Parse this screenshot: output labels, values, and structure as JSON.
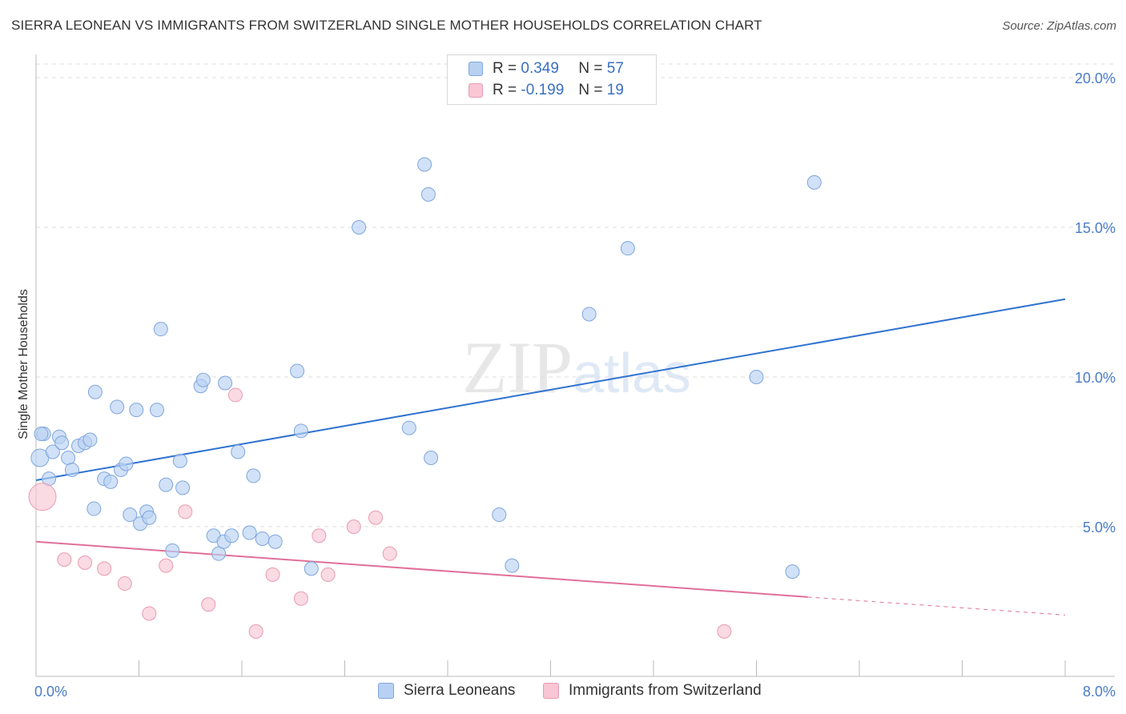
{
  "title": "SIERRA LEONEAN VS IMMIGRANTS FROM SWITZERLAND SINGLE MOTHER HOUSEHOLDS CORRELATION CHART",
  "source": "Source: ZipAtlas.com",
  "watermark": "ZIPatlas",
  "legend": {
    "rows": [
      {
        "r_label": "R =",
        "r_value": "0.349",
        "n_label": "N =",
        "n_value": "57"
      },
      {
        "r_label": "R =",
        "r_value": "-0.199",
        "n_label": "N =",
        "n_value": "19"
      }
    ]
  },
  "bottom_legend": [
    "Sierra Leoneans",
    "Immigrants from Switzerland"
  ],
  "colors": {
    "blue_fill": "#b8d1f2",
    "blue_stroke": "#7fa6dc",
    "blue_line": "#2f72d0",
    "pink_fill": "#f8c6d4",
    "pink_stroke": "#e89bb3",
    "pink_line": "#e0709a",
    "tick_text": "#4a7cc9",
    "grid": "#dcdcdc"
  },
  "chart_data": {
    "type": "scatter",
    "title": "SIERRA LEONEAN VS IMMIGRANTS FROM SWITZERLAND SINGLE MOTHER HOUSEHOLDS CORRELATION CHART",
    "xlabel": "",
    "ylabel": "Single Mother Households",
    "xlim": [
      0,
      8
    ],
    "ylim": [
      0,
      20
    ],
    "x_tick_labels": [
      "0.0%",
      "8.0%"
    ],
    "y_ticks": [
      5,
      10,
      15,
      20
    ],
    "y_tick_labels": [
      "5.0%",
      "10.0%",
      "15.0%",
      "20.0%"
    ],
    "grid": true,
    "legend_position": "top-center",
    "series": [
      {
        "name": "Sierra Leoneans",
        "color": "#b8d1f2",
        "points": [
          [
            0.03,
            7.3
          ],
          [
            0.06,
            8.1
          ],
          [
            0.1,
            6.6
          ],
          [
            0.13,
            7.5
          ],
          [
            0.18,
            8.0
          ],
          [
            0.2,
            7.8
          ],
          [
            0.25,
            7.3
          ],
          [
            0.28,
            6.9
          ],
          [
            0.33,
            7.7
          ],
          [
            0.38,
            7.8
          ],
          [
            0.42,
            7.9
          ],
          [
            0.46,
            9.5
          ],
          [
            0.53,
            6.6
          ],
          [
            0.58,
            6.5
          ],
          [
            0.63,
            9.0
          ],
          [
            0.66,
            6.9
          ],
          [
            0.7,
            7.1
          ],
          [
            0.73,
            5.4
          ],
          [
            0.78,
            8.9
          ],
          [
            0.81,
            5.1
          ],
          [
            0.86,
            5.5
          ],
          [
            0.88,
            5.3
          ],
          [
            0.94,
            8.9
          ],
          [
            0.97,
            11.6
          ],
          [
            1.01,
            6.4
          ],
          [
            1.06,
            4.2
          ],
          [
            1.12,
            7.2
          ],
          [
            1.14,
            6.3
          ],
          [
            1.28,
            9.7
          ],
          [
            1.3,
            9.9
          ],
          [
            1.38,
            4.7
          ],
          [
            1.42,
            4.1
          ],
          [
            1.46,
            4.5
          ],
          [
            1.47,
            9.8
          ],
          [
            1.52,
            4.7
          ],
          [
            1.57,
            7.5
          ],
          [
            1.66,
            4.8
          ],
          [
            1.69,
            6.7
          ],
          [
            1.76,
            4.6
          ],
          [
            1.86,
            4.5
          ],
          [
            2.03,
            10.2
          ],
          [
            2.06,
            8.2
          ],
          [
            2.14,
            3.6
          ],
          [
            2.51,
            15.0
          ],
          [
            2.9,
            8.3
          ],
          [
            3.02,
            17.1
          ],
          [
            3.05,
            16.1
          ],
          [
            3.07,
            7.3
          ],
          [
            3.6,
            5.4
          ],
          [
            3.7,
            3.7
          ],
          [
            4.3,
            12.1
          ],
          [
            4.6,
            14.3
          ],
          [
            5.6,
            10.0
          ],
          [
            5.88,
            3.5
          ],
          [
            6.05,
            16.5
          ],
          [
            0.45,
            5.6
          ],
          [
            0.04,
            8.1
          ]
        ]
      },
      {
        "name": "Immigrants from Switzerland",
        "color": "#f8c6d4",
        "points": [
          [
            0.05,
            6.0
          ],
          [
            0.22,
            3.9
          ],
          [
            0.38,
            3.8
          ],
          [
            0.53,
            3.6
          ],
          [
            0.69,
            3.1
          ],
          [
            0.88,
            2.1
          ],
          [
            1.01,
            3.7
          ],
          [
            1.16,
            5.5
          ],
          [
            1.34,
            2.4
          ],
          [
            1.55,
            9.4
          ],
          [
            1.71,
            1.5
          ],
          [
            1.84,
            3.4
          ],
          [
            2.06,
            2.6
          ],
          [
            2.2,
            4.7
          ],
          [
            2.27,
            3.4
          ],
          [
            2.47,
            5.0
          ],
          [
            2.64,
            5.3
          ],
          [
            2.75,
            4.1
          ],
          [
            5.35,
            1.5
          ]
        ]
      }
    ],
    "trendlines": [
      {
        "series": "Sierra Leoneans",
        "x0": 0.0,
        "y0": 6.55,
        "x1": 8.0,
        "y1": 12.6
      },
      {
        "series": "Immigrants from Switzerland",
        "x0": 0.0,
        "y0": 4.5,
        "x1": 6.0,
        "y1": 2.65,
        "dashed_to_x": 8.0,
        "dashed_to_y": 2.05
      }
    ]
  }
}
